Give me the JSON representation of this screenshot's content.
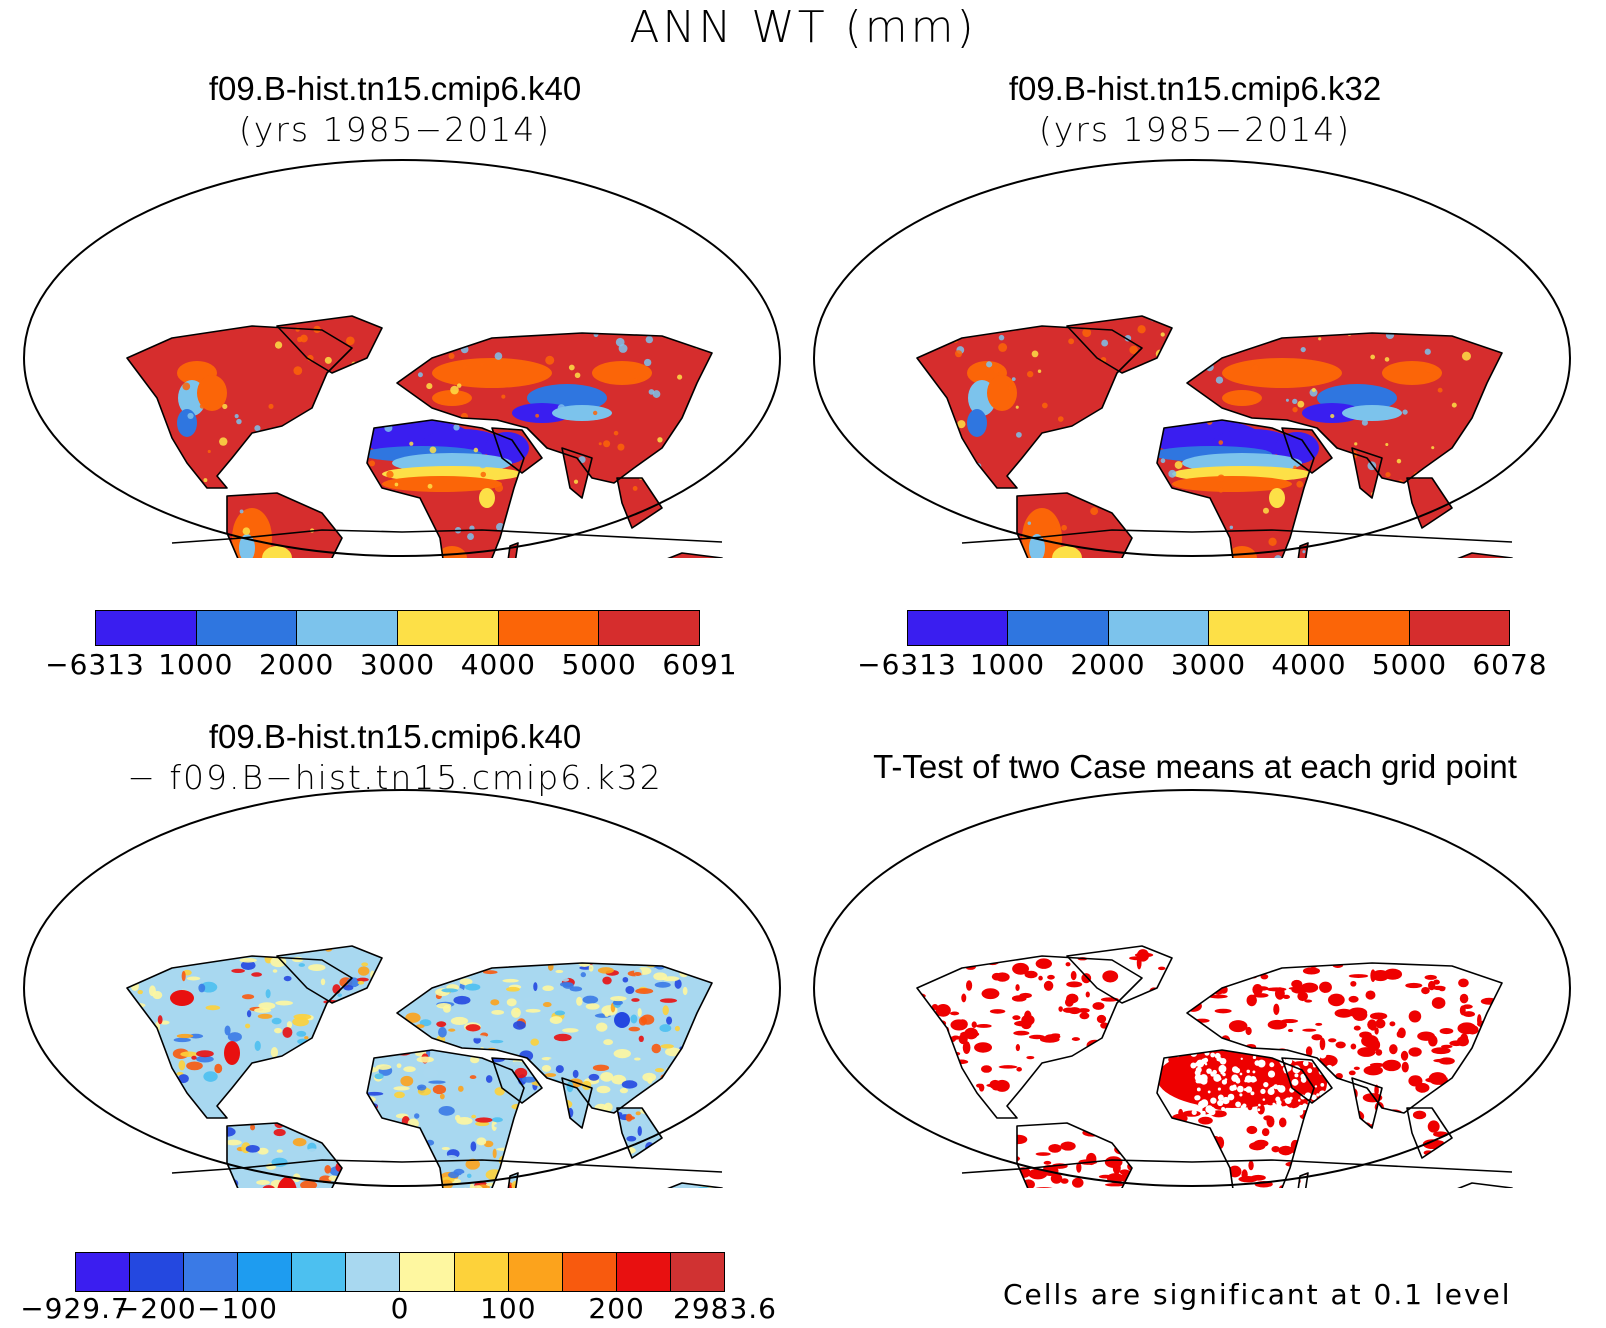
{
  "figure": {
    "title": "ANN WT (mm)"
  },
  "panels": {
    "top_left": {
      "title": "f09.B-hist.tn15.cmip6.k40",
      "subtitle": "(yrs 1985−2014)",
      "colorbar": {
        "colors": [
          "#3a1ef0",
          "#2f76e0",
          "#7cc3ec",
          "#fde047",
          "#fb6508",
          "#d62d2d"
        ],
        "labels": [
          "−6313",
          "1000",
          "2000",
          "3000",
          "4000",
          "5000",
          "6091"
        ]
      }
    },
    "top_right": {
      "title": "f09.B-hist.tn15.cmip6.k32",
      "subtitle": "(yrs 1985−2014)",
      "colorbar": {
        "colors": [
          "#3a1ef0",
          "#2f76e0",
          "#7cc3ec",
          "#fde047",
          "#fb6508",
          "#d62d2d"
        ],
        "labels": [
          "−6313",
          "1000",
          "2000",
          "3000",
          "4000",
          "5000",
          "6078"
        ]
      }
    },
    "bottom_left": {
      "title": "f09.B-hist.tn15.cmip6.k40",
      "subtitle": "− f09.B−hist.tn15.cmip6.k32",
      "colorbar": {
        "colors": [
          "#3b1ef0",
          "#2448e0",
          "#3a7ae6",
          "#1e9cf0",
          "#4cc0f0",
          "#a8d8f0",
          "#fef7a0",
          "#fdd23a",
          "#fca31c",
          "#f85a0e",
          "#e81010",
          "#d03232"
        ],
        "labels": [
          "−929.7",
          "−200",
          "−100",
          "0",
          "100",
          "200",
          "2983.6"
        ]
      }
    },
    "bottom_right": {
      "title": "T-Test of two Case means at each grid point",
      "note": "Cells are significant at 0.1 level",
      "significance_color": "#ee0000"
    }
  }
}
